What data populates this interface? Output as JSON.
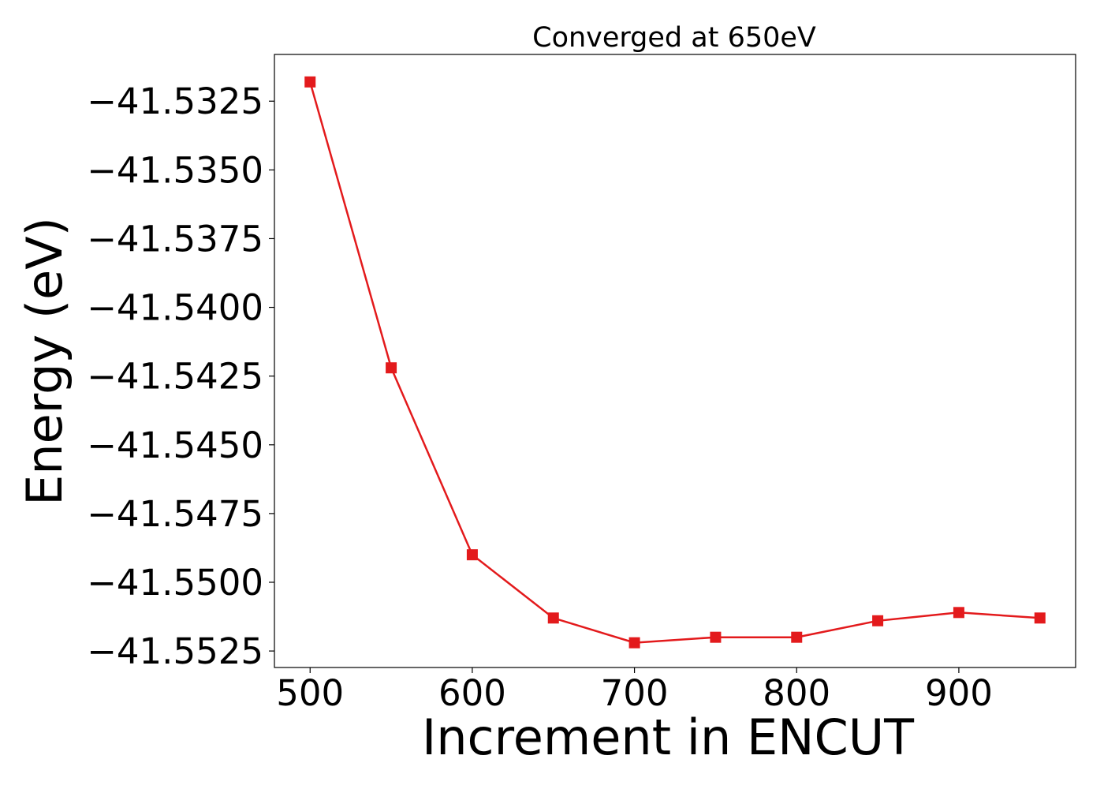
{
  "chart_data": {
    "type": "line",
    "title": "Converged at 650eV",
    "xlabel": "Increment in ENCUT",
    "ylabel": "Energy (eV)",
    "xlim": [
      478,
      972
    ],
    "ylim": [
      -41.5531,
      -41.5308
    ],
    "x_ticks": [
      500,
      600,
      700,
      800,
      900
    ],
    "x_tick_labels": [
      "500",
      "600",
      "700",
      "800",
      "900"
    ],
    "y_ticks": [
      -41.5325,
      -41.535,
      -41.5375,
      -41.54,
      -41.5425,
      -41.545,
      -41.5475,
      -41.55,
      -41.5525
    ],
    "y_tick_labels": [
      "−41.5325",
      "−41.5350",
      "−41.5375",
      "−41.5400",
      "−41.5425",
      "−41.5450",
      "−41.5475",
      "−41.5500",
      "−41.5525"
    ],
    "grid": false,
    "series": [
      {
        "color": "#e31a1c",
        "marker": "square",
        "x": [
          500,
          550,
          600,
          650,
          700,
          750,
          800,
          850,
          900,
          950
        ],
        "y": [
          -41.5318,
          -41.5422,
          -41.549,
          -41.5513,
          -41.5522,
          -41.552,
          -41.552,
          -41.5514,
          -41.5511,
          -41.5513
        ]
      }
    ]
  }
}
